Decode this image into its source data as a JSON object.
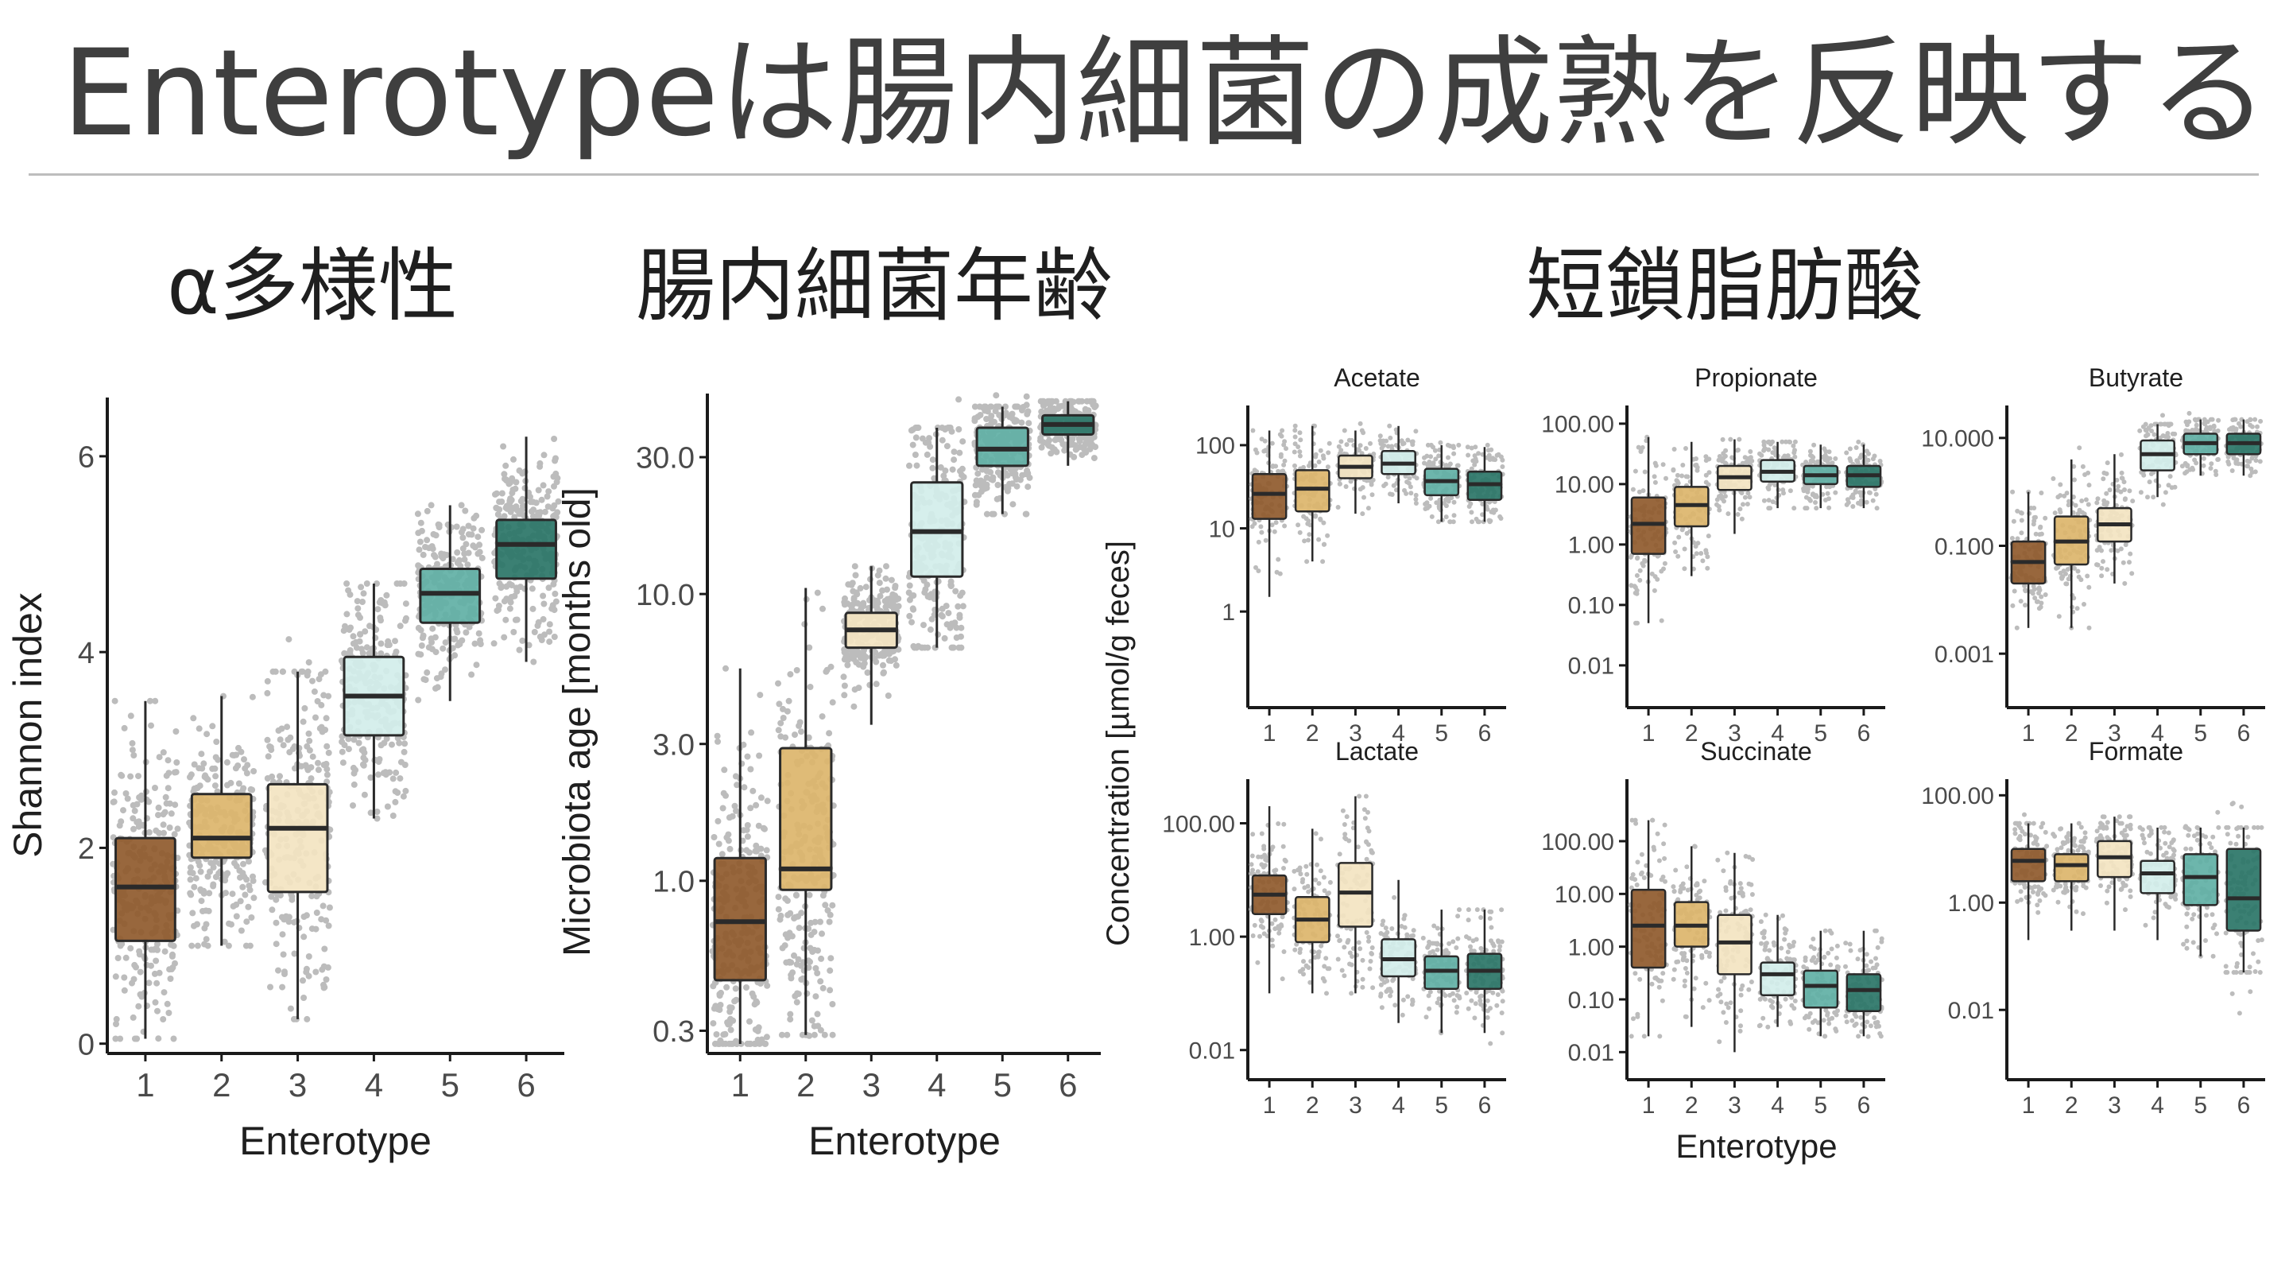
{
  "slide": {
    "title": "Enterotypeは腸内細菌の成熟を反映する",
    "sections": [
      "α多様性",
      "腸内細菌年齢",
      "短鎖脂肪酸"
    ]
  },
  "colors": {
    "enterotype": [
      "#8f5a2c",
      "#dcb56b",
      "#f3e4c1",
      "#d3eeea",
      "#61b0a5",
      "#2a7567"
    ],
    "points": "#bcbcbc",
    "box_stroke": "#2a2a2a",
    "axis": "#1a1a1a"
  },
  "chart_data": [
    {
      "type": "box",
      "panel": "alpha-diversity",
      "xlabel": "Enterotype",
      "ylabel": "Shannon index",
      "categories": [
        "1",
        "2",
        "3",
        "4",
        "5",
        "6"
      ],
      "y_scale": "linear",
      "ylim": [
        -0.1,
        6.6
      ],
      "yticks": [
        0,
        2,
        4,
        6
      ],
      "ytick_labels": [
        "0",
        "2",
        "4",
        "6"
      ],
      "boxes": [
        {
          "q1": 1.05,
          "median": 1.6,
          "q3": 2.1,
          "whisker_low": 0.05,
          "whisker_high": 3.5
        },
        {
          "q1": 1.9,
          "median": 2.1,
          "q3": 2.55,
          "whisker_low": 1.0,
          "whisker_high": 3.55
        },
        {
          "q1": 1.55,
          "median": 2.2,
          "q3": 2.65,
          "whisker_low": 0.25,
          "whisker_high": 3.8
        },
        {
          "q1": 3.15,
          "median": 3.55,
          "q3": 3.95,
          "whisker_low": 2.3,
          "whisker_high": 4.7
        },
        {
          "q1": 4.3,
          "median": 4.6,
          "q3": 4.85,
          "whisker_low": 3.5,
          "whisker_high": 5.5
        },
        {
          "q1": 4.75,
          "median": 5.1,
          "q3": 5.35,
          "whisker_low": 3.9,
          "whisker_high": 6.2
        }
      ]
    },
    {
      "type": "box",
      "panel": "microbiota-age",
      "xlabel": "Enterotype",
      "ylabel": "Microbiota age [months old]",
      "categories": [
        "1",
        "2",
        "3",
        "4",
        "5",
        "6"
      ],
      "y_scale": "log",
      "ylim": [
        0.25,
        50
      ],
      "yticks": [
        0.3,
        1.0,
        3.0,
        10.0,
        30.0
      ],
      "ytick_labels": [
        "0.3",
        "1.0",
        "3.0",
        "10.0",
        "30.0"
      ],
      "boxes": [
        {
          "q1": 0.45,
          "median": 0.72,
          "q3": 1.2,
          "whisker_low": 0.27,
          "whisker_high": 5.5
        },
        {
          "q1": 0.93,
          "median": 1.1,
          "q3": 2.9,
          "whisker_low": 0.29,
          "whisker_high": 10.5
        },
        {
          "q1": 6.5,
          "median": 7.5,
          "q3": 8.6,
          "whisker_low": 3.5,
          "whisker_high": 12.5
        },
        {
          "q1": 11.5,
          "median": 16.5,
          "q3": 24.5,
          "whisker_low": 6.5,
          "whisker_high": 38
        },
        {
          "q1": 28,
          "median": 32,
          "q3": 38,
          "whisker_low": 19,
          "whisker_high": 45
        },
        {
          "q1": 36,
          "median": 39,
          "q3": 42,
          "whisker_low": 28,
          "whisker_high": 47
        }
      ]
    },
    {
      "type": "box",
      "panel": "scfa",
      "xlabel": "Enterotype",
      "ylabel": "Concentration [µmol/g feces]",
      "categories": [
        "1",
        "2",
        "3",
        "4",
        "5",
        "6"
      ],
      "y_scale": "log",
      "facets": [
        {
          "title": "Acetate",
          "ylim": [
            0.07,
            300
          ],
          "yticks": [
            1,
            10,
            100
          ],
          "ytick_labels": [
            "1",
            "10",
            "100"
          ],
          "boxes": [
            {
              "q1": 13,
              "median": 26,
              "q3": 45,
              "whisker_low": 1.5,
              "whisker_high": 150
            },
            {
              "q1": 16,
              "median": 30,
              "q3": 50,
              "whisker_low": 4,
              "whisker_high": 170
            },
            {
              "q1": 40,
              "median": 55,
              "q3": 75,
              "whisker_low": 15,
              "whisker_high": 150
            },
            {
              "q1": 45,
              "median": 60,
              "q3": 85,
              "whisker_low": 20,
              "whisker_high": 170
            },
            {
              "q1": 25,
              "median": 37,
              "q3": 52,
              "whisker_low": 12,
              "whisker_high": 100
            },
            {
              "q1": 22,
              "median": 34,
              "q3": 48,
              "whisker_low": 12,
              "whisker_high": 95
            }
          ]
        },
        {
          "title": "Propionate",
          "ylim": [
            0.002,
            200
          ],
          "yticks": [
            0.01,
            0.1,
            1,
            10,
            100
          ],
          "ytick_labels": [
            "0.01",
            "0.10",
            "1.00",
            "10.00",
            "100.00"
          ],
          "boxes": [
            {
              "q1": 0.7,
              "median": 2.2,
              "q3": 6,
              "whisker_low": 0.05,
              "whisker_high": 60
            },
            {
              "q1": 2,
              "median": 4.5,
              "q3": 9,
              "whisker_low": 0.3,
              "whisker_high": 50
            },
            {
              "q1": 8,
              "median": 13,
              "q3": 20,
              "whisker_low": 1.5,
              "whisker_high": 55
            },
            {
              "q1": 11,
              "median": 16,
              "q3": 25,
              "whisker_low": 4,
              "whisker_high": 50
            },
            {
              "q1": 10,
              "median": 14,
              "q3": 20,
              "whisker_low": 4,
              "whisker_high": 45
            },
            {
              "q1": 9,
              "median": 14,
              "q3": 20,
              "whisker_low": 4,
              "whisker_high": 45
            }
          ]
        },
        {
          "title": "Butyrate",
          "ylim": [
            0.0001,
            40
          ],
          "yticks": [
            0.001,
            0.1,
            10
          ],
          "ytick_labels": [
            "0.001",
            "0.100",
            "10.000"
          ],
          "boxes": [
            {
              "q1": 0.02,
              "median": 0.05,
              "q3": 0.12,
              "whisker_low": 0.003,
              "whisker_high": 1
            },
            {
              "q1": 0.045,
              "median": 0.12,
              "q3": 0.35,
              "whisker_low": 0.003,
              "whisker_high": 4
            },
            {
              "q1": 0.12,
              "median": 0.25,
              "q3": 0.5,
              "whisker_low": 0.02,
              "whisker_high": 5
            },
            {
              "q1": 2.5,
              "median": 5,
              "q3": 9,
              "whisker_low": 0.8,
              "whisker_high": 18
            },
            {
              "q1": 5,
              "median": 8,
              "q3": 12,
              "whisker_low": 2,
              "whisker_high": 22
            },
            {
              "q1": 5,
              "median": 8,
              "q3": 12,
              "whisker_low": 2,
              "whisker_high": 22
            }
          ]
        },
        {
          "title": "Lactate",
          "ylim": [
            0.003,
            600
          ],
          "yticks": [
            0.01,
            1,
            100
          ],
          "ytick_labels": [
            "0.01",
            "1.00",
            "100.00"
          ],
          "boxes": [
            {
              "q1": 2.5,
              "median": 5.5,
              "q3": 12,
              "whisker_low": 0.1,
              "whisker_high": 200
            },
            {
              "q1": 0.8,
              "median": 2,
              "q3": 5,
              "whisker_low": 0.1,
              "whisker_high": 80
            },
            {
              "q1": 1.5,
              "median": 6,
              "q3": 20,
              "whisker_low": 0.1,
              "whisker_high": 300
            },
            {
              "q1": 0.2,
              "median": 0.4,
              "q3": 0.9,
              "whisker_low": 0.03,
              "whisker_high": 10
            },
            {
              "q1": 0.12,
              "median": 0.25,
              "q3": 0.45,
              "whisker_low": 0.02,
              "whisker_high": 3
            },
            {
              "q1": 0.12,
              "median": 0.25,
              "q3": 0.5,
              "whisker_low": 0.02,
              "whisker_high": 3
            }
          ]
        },
        {
          "title": "Succinate",
          "ylim": [
            0.003,
            1500
          ],
          "yticks": [
            0.01,
            0.1,
            1,
            10,
            100
          ],
          "ytick_labels": [
            "0.01",
            "0.10",
            "1.00",
            "10.00",
            "100.00"
          ],
          "boxes": [
            {
              "q1": 0.4,
              "median": 2.5,
              "q3": 12,
              "whisker_low": 0.02,
              "whisker_high": 250
            },
            {
              "q1": 1,
              "median": 2.5,
              "q3": 7,
              "whisker_low": 0.03,
              "whisker_high": 80
            },
            {
              "q1": 0.3,
              "median": 1.2,
              "q3": 4,
              "whisker_low": 0.01,
              "whisker_high": 60
            },
            {
              "q1": 0.12,
              "median": 0.3,
              "q3": 0.5,
              "whisker_low": 0.03,
              "whisker_high": 4
            },
            {
              "q1": 0.07,
              "median": 0.18,
              "q3": 0.35,
              "whisker_low": 0.02,
              "whisker_high": 2
            },
            {
              "q1": 0.06,
              "median": 0.15,
              "q3": 0.3,
              "whisker_low": 0.02,
              "whisker_high": 2
            }
          ]
        },
        {
          "title": "Formate",
          "ylim": [
            0.0005,
            200
          ],
          "yticks": [
            0.01,
            1,
            100
          ],
          "ytick_labels": [
            "0.01",
            "1.00",
            "100.00"
          ],
          "boxes": [
            {
              "q1": 2.5,
              "median": 6,
              "q3": 10,
              "whisker_low": 0.2,
              "whisker_high": 30
            },
            {
              "q1": 2.5,
              "median": 5,
              "q3": 8,
              "whisker_low": 0.3,
              "whisker_high": 30
            },
            {
              "q1": 3,
              "median": 7,
              "q3": 14,
              "whisker_low": 0.3,
              "whisker_high": 40
            },
            {
              "q1": 1.5,
              "median": 3.5,
              "q3": 6,
              "whisker_low": 0.2,
              "whisker_high": 25
            },
            {
              "q1": 0.9,
              "median": 3,
              "q3": 8,
              "whisker_low": 0.1,
              "whisker_high": 25
            },
            {
              "q1": 0.3,
              "median": 1.2,
              "q3": 10,
              "whisker_low": 0.05,
              "whisker_high": 25
            }
          ]
        }
      ]
    }
  ]
}
